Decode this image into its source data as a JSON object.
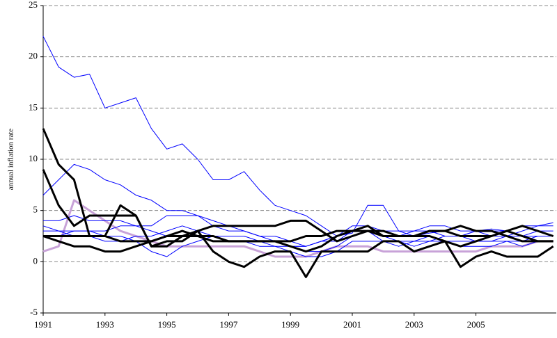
{
  "chart_data": {
    "type": "line",
    "y_label": "annual inflation rate",
    "x": [
      1991,
      1991.5,
      1992,
      1992.5,
      1993,
      1993.5,
      1994,
      1994.5,
      1995,
      1995.5,
      1996,
      1996.5,
      1997,
      1997.5,
      1998,
      1998.5,
      1999,
      1999.5,
      2000,
      2000.5,
      2001,
      2001.5,
      2002,
      2002.5,
      2003,
      2003.5,
      2004,
      2004.5,
      2005,
      2005.5,
      2006,
      2006.5,
      2007,
      2007.5
    ],
    "xlim": [
      1991,
      2007.6
    ],
    "xticks": [
      1991,
      1993,
      1995,
      1997,
      1999,
      2001,
      2003,
      2005
    ],
    "ylim": [
      -5,
      25
    ],
    "yticks": [
      -5,
      0,
      5,
      10,
      15,
      20,
      25
    ],
    "grid": true,
    "series": [
      {
        "color": "#c8a2d8",
        "width": 3,
        "values": [
          1,
          1.5,
          6,
          5,
          4,
          3,
          2.5,
          2,
          1.5,
          1.5,
          1.5,
          1.5,
          1.5,
          1.5,
          1,
          0.5,
          0.5,
          0.5,
          1,
          1.5,
          1.5,
          1.5,
          1,
          1,
          1,
          1,
          1,
          1,
          1,
          1.5,
          1.5,
          1.5,
          2,
          2
        ]
      },
      {
        "color": "#0000ff",
        "width": 1,
        "values": [
          22,
          19,
          18,
          18.3,
          15,
          15.5,
          16,
          13,
          11,
          11.5,
          10,
          8,
          8,
          8.8,
          7,
          5.5,
          5,
          4.5,
          3.5,
          2.5,
          2.8,
          5.5,
          5.5,
          3,
          2.5,
          2.8,
          3,
          2.5,
          3,
          3.2,
          3,
          3.5,
          3.5,
          3.8
        ]
      },
      {
        "color": "#0000ff",
        "width": 1,
        "values": [
          6.5,
          8,
          9.5,
          9,
          8,
          7.5,
          6.5,
          6,
          5,
          5,
          4.5,
          4,
          3.5,
          3,
          2.5,
          2,
          1.5,
          1.5,
          2,
          2.5,
          3.5,
          3.5,
          3,
          3,
          3,
          3.5,
          3.5,
          3,
          3,
          2.5,
          2.5,
          3,
          3.5,
          3.5
        ]
      },
      {
        "color": "#0000ff",
        "width": 1,
        "values": [
          4,
          4,
          4.5,
          4,
          4,
          4,
          3.5,
          3.5,
          4.5,
          4.5,
          4.5,
          3.5,
          3,
          3,
          2.5,
          2.5,
          2,
          1.5,
          2,
          2.5,
          3,
          3,
          2.5,
          2.5,
          3,
          3,
          2.5,
          2.5,
          3,
          3,
          3,
          2.5,
          3,
          3
        ]
      },
      {
        "color": "#0000ff",
        "width": 1,
        "values": [
          3.5,
          3,
          3,
          3,
          2.5,
          2.5,
          2,
          1,
          0.5,
          1.5,
          2,
          2.5,
          2.5,
          2.5,
          2,
          1.5,
          1,
          0.5,
          0.5,
          1,
          2,
          2,
          2,
          2,
          1.5,
          2,
          2.5,
          2.5,
          2,
          2,
          2.5,
          2.5,
          2.5,
          2.5
        ]
      },
      {
        "color": "#0000ff",
        "width": 1,
        "values": [
          3,
          3,
          2.5,
          2.5,
          2,
          2,
          2.5,
          2.5,
          3,
          3.5,
          3,
          2.5,
          2,
          2,
          2,
          2,
          1.5,
          1,
          1,
          1.5,
          2.5,
          3,
          2.5,
          2,
          2,
          2.5,
          2,
          2,
          2,
          2,
          2,
          1.5,
          2,
          2
        ]
      },
      {
        "color": "#0000ff",
        "width": 1,
        "values": [
          2.5,
          2.5,
          3,
          3,
          3,
          3.5,
          3.5,
          3,
          2.5,
          2.5,
          2.5,
          2,
          2,
          2,
          1.5,
          1.5,
          1.5,
          1.5,
          2,
          2,
          3,
          3,
          2,
          1.5,
          2,
          2,
          2,
          1.5,
          1.5,
          1.5,
          2,
          2,
          2.5,
          2.5
        ]
      },
      {
        "color": "#000000",
        "width": 3,
        "values": [
          9,
          5.5,
          3.5,
          4.5,
          4.5,
          4.5,
          4.5,
          1.5,
          2,
          2,
          3,
          3.5,
          3.5,
          3.5,
          3.5,
          3.5,
          4,
          4,
          3,
          2,
          2.5,
          3,
          2.5,
          2.5,
          2.5,
          3,
          3,
          3.5,
          3,
          3,
          2.5,
          2,
          2,
          2
        ]
      },
      {
        "color": "#000000",
        "width": 3,
        "values": [
          13,
          9.5,
          8,
          2.5,
          2.5,
          2,
          2,
          2,
          2.5,
          2.5,
          2.5,
          2.5,
          2,
          2,
          2,
          2,
          2,
          2.5,
          2.5,
          3,
          3,
          3,
          3,
          2.5,
          2.5,
          3,
          3,
          2.5,
          2.5,
          2.5,
          3,
          2.5,
          2,
          2
        ]
      },
      {
        "color": "#000000",
        "width": 3,
        "values": [
          2.5,
          2.5,
          2.5,
          2.5,
          2.5,
          5.5,
          4.5,
          1.5,
          1.5,
          2.5,
          3,
          1,
          0,
          -0.5,
          0.5,
          1,
          1,
          -1.5,
          1,
          1,
          1,
          1,
          2,
          2,
          1,
          1.5,
          2,
          -0.5,
          0.5,
          1,
          0.5,
          0.5,
          0.5,
          1.5
        ]
      },
      {
        "color": "#000000",
        "width": 3,
        "values": [
          2.5,
          2,
          1.5,
          1.5,
          1,
          1,
          1.5,
          2,
          2.5,
          3,
          2.5,
          2,
          2,
          2,
          2,
          2,
          1.5,
          1,
          1.5,
          2.5,
          3,
          3.5,
          2.5,
          2.5,
          2.5,
          2.5,
          2,
          1.5,
          2,
          2.5,
          3,
          3.5,
          3,
          2.5
        ]
      }
    ]
  }
}
